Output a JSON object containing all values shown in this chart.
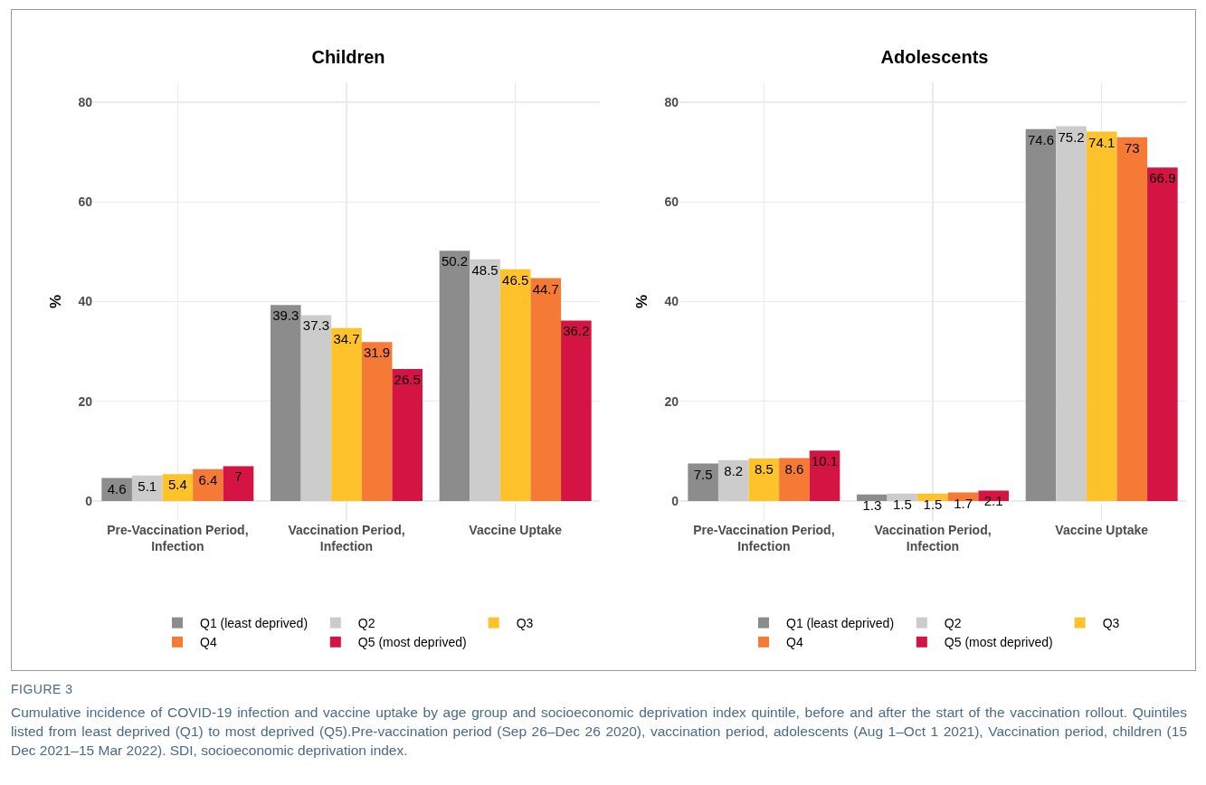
{
  "chart_data": [
    {
      "type": "bar",
      "title": "Children",
      "ylabel": "%",
      "categories": [
        "Pre-Vaccination Period,\nInfection",
        "Vaccination Period,\nInfection",
        "Vaccine Uptake"
      ],
      "series": [
        {
          "name": "Q1 (least deprived)",
          "color": "#8c8c8c",
          "values": [
            4.6,
            39.3,
            50.2
          ]
        },
        {
          "name": "Q2",
          "color": "#cccccc",
          "values": [
            5.1,
            37.3,
            48.5
          ]
        },
        {
          "name": "Q3",
          "color": "#fec22a",
          "values": [
            5.4,
            34.7,
            46.5
          ]
        },
        {
          "name": "Q4",
          "color": "#f47a36",
          "values": [
            6.4,
            31.9,
            44.7
          ]
        },
        {
          "name": "Q5 (most deprived)",
          "color": "#d41442",
          "values": [
            7,
            26.5,
            36.2
          ]
        }
      ],
      "ylim": [
        -4,
        84
      ],
      "yticks": [
        0,
        20,
        40,
        60,
        80
      ],
      "grid": true,
      "legend": "bottom",
      "data_labels": true
    },
    {
      "type": "bar",
      "title": "Adolescents",
      "ylabel": "%",
      "categories": [
        "Pre-Vaccination Period,\nInfection",
        "Vaccination Period,\nInfection",
        "Vaccine Uptake"
      ],
      "series": [
        {
          "name": "Q1 (least deprived)",
          "color": "#8c8c8c",
          "values": [
            7.5,
            1.3,
            74.6
          ]
        },
        {
          "name": "Q2",
          "color": "#cccccc",
          "values": [
            8.2,
            1.5,
            75.2
          ]
        },
        {
          "name": "Q3",
          "color": "#fec22a",
          "values": [
            8.5,
            1.5,
            74.1
          ]
        },
        {
          "name": "Q4",
          "color": "#f47a36",
          "values": [
            8.6,
            1.7,
            73
          ]
        },
        {
          "name": "Q5 (most deprived)",
          "color": "#d41442",
          "values": [
            10.1,
            2.1,
            66.9
          ]
        }
      ],
      "ylim": [
        -4,
        84
      ],
      "yticks": [
        0,
        20,
        40,
        60,
        80
      ],
      "grid": true,
      "legend": "bottom",
      "data_labels": true,
      "annotations": [
        "FIGURE 3",
        "Cumulative incidence of COVID-19 infection and vaccine uptake by age group and socioeconomic deprivation index quintile, before and after the start of the vaccination rollout. Quintiles listed from least deprived (Q1) to most deprived (Q5).Pre-vaccination period (Sep 26–Dec 26 2020), vaccination period, adolescents (Aug 1–Oct 1 2021), Vaccination period, children (15 Dec 2021–15 Mar 2022). SDI, socioeconomic deprivation index."
      ]
    }
  ]
}
